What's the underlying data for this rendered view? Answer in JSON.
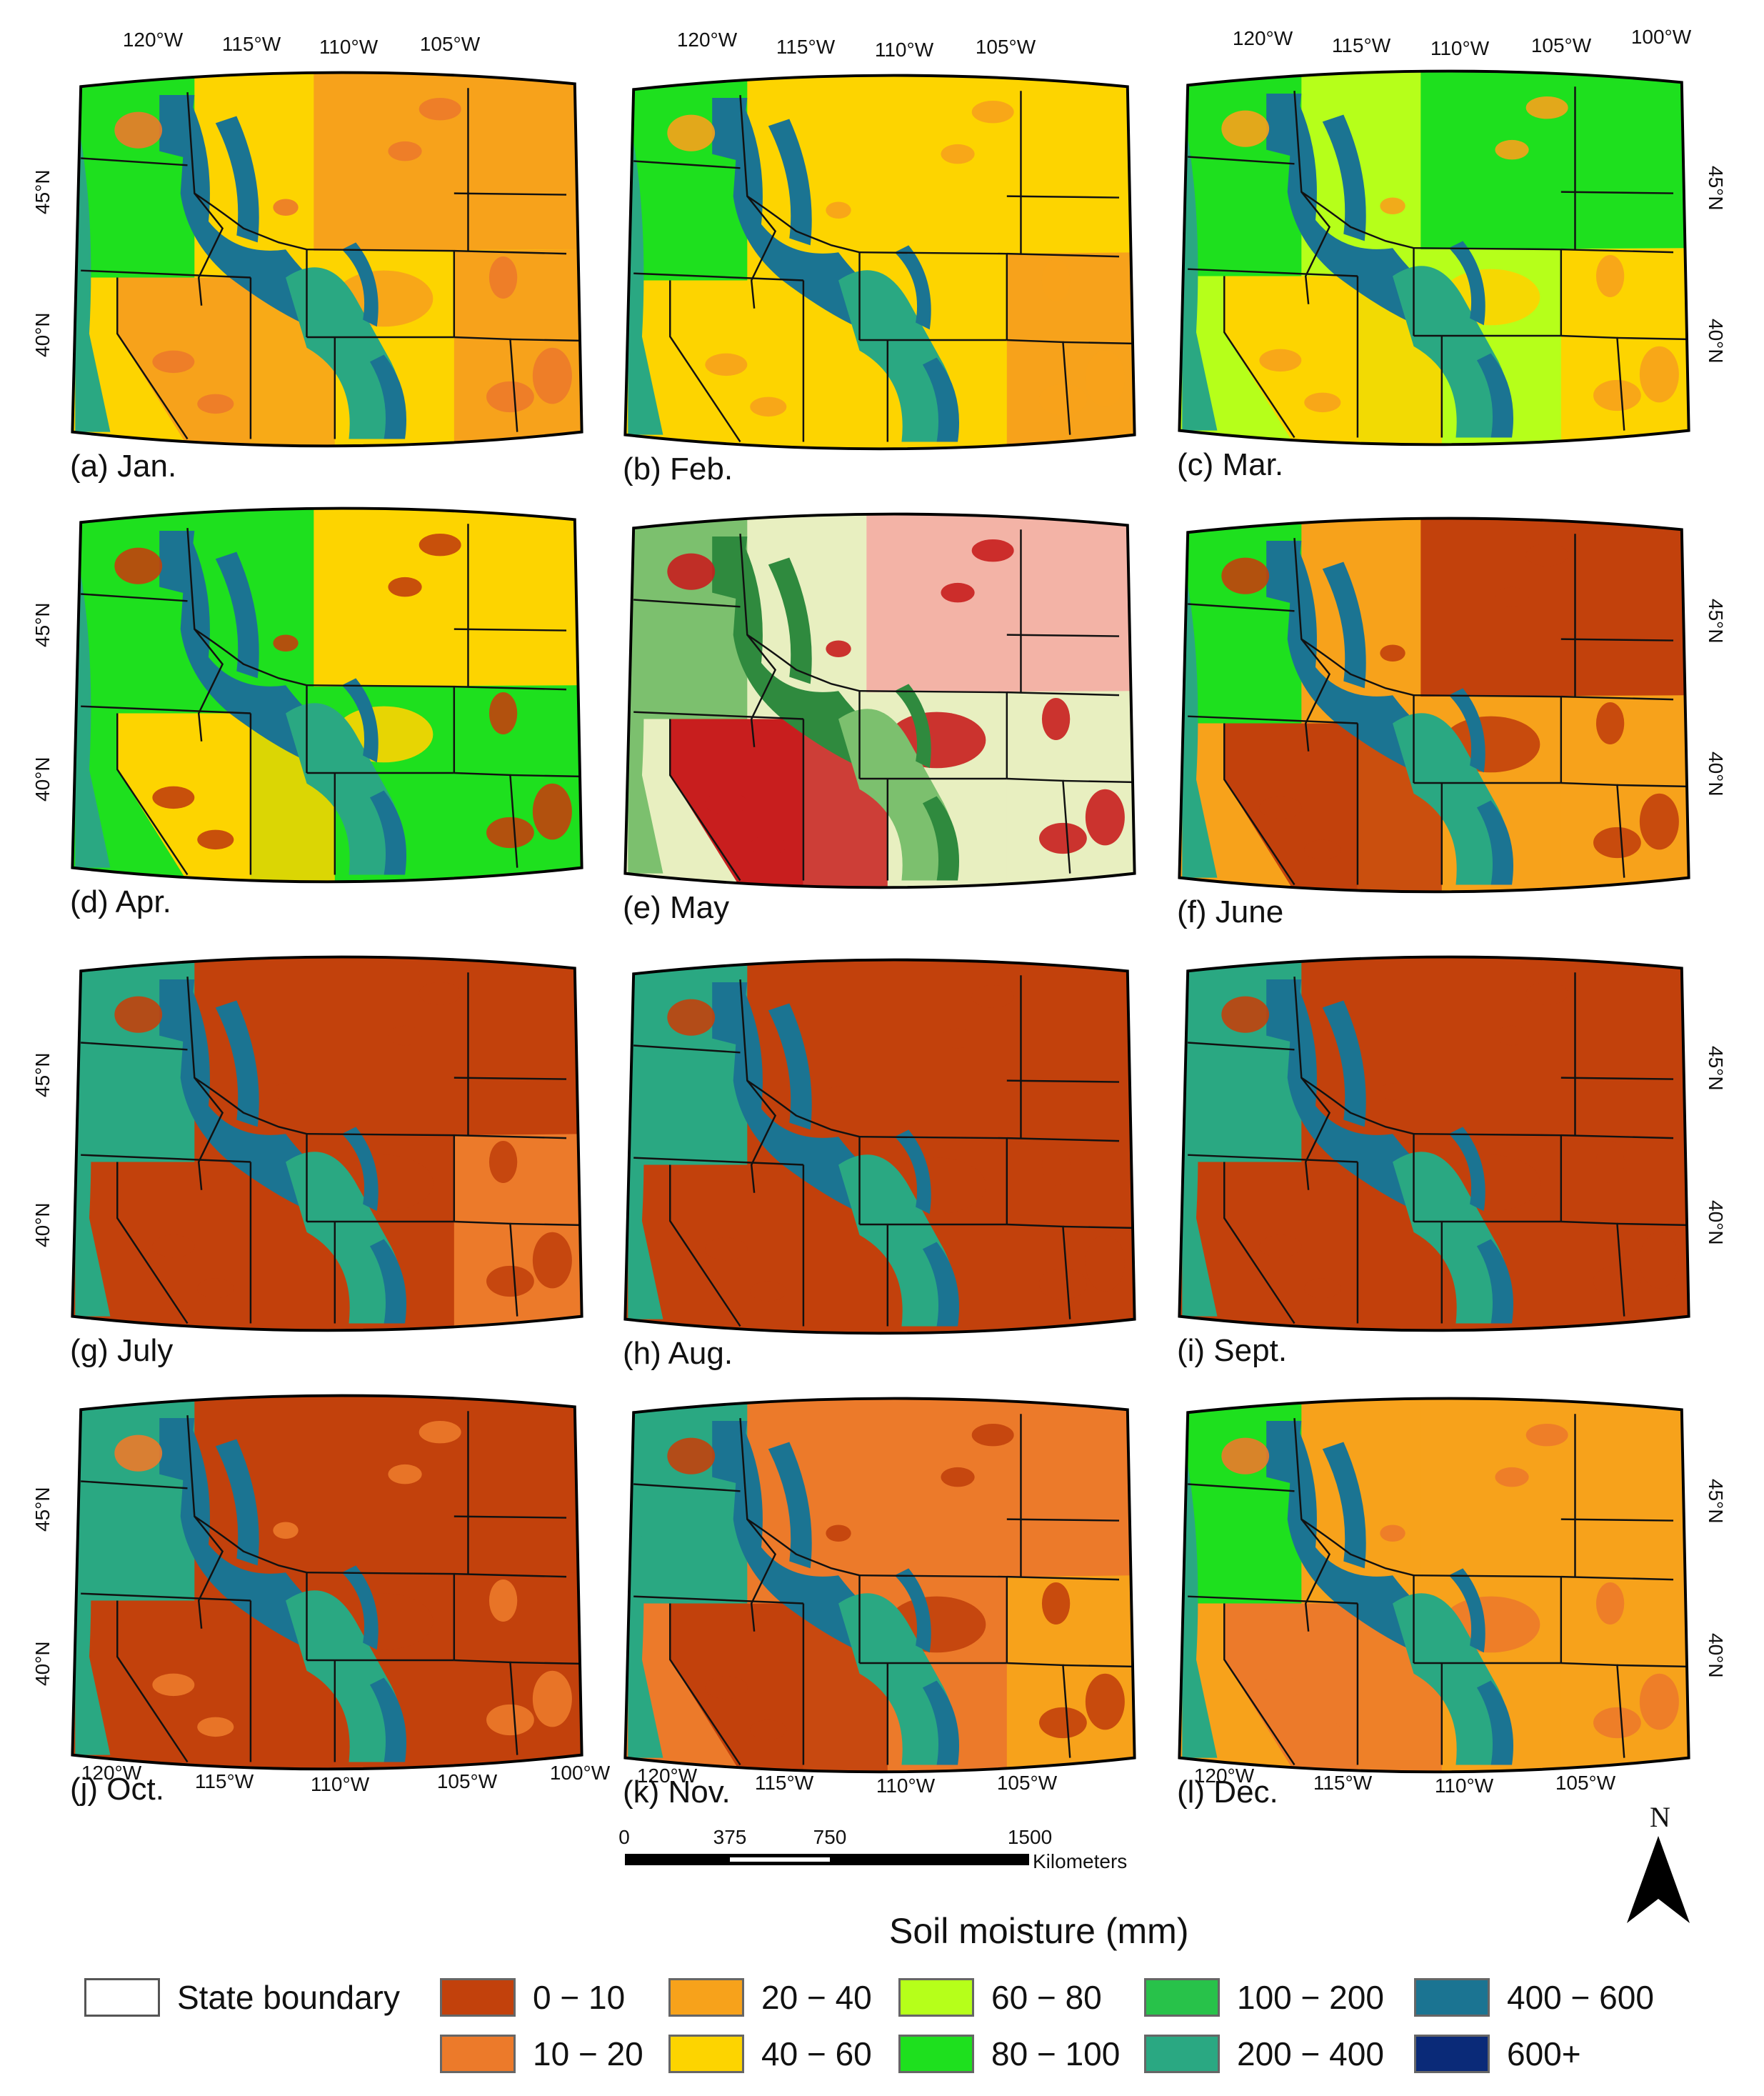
{
  "panels": [
    {
      "label": "(a) Jan.",
      "scheme": "jan"
    },
    {
      "label": "(b) Feb.",
      "scheme": "feb"
    },
    {
      "label": "(c) Mar.",
      "scheme": "mar"
    },
    {
      "label": "(d) Apr.",
      "scheme": "apr"
    },
    {
      "label": "(e) May",
      "scheme": "may"
    },
    {
      "label": "(f) June",
      "scheme": "jun"
    },
    {
      "label": "(g) July",
      "scheme": "jul"
    },
    {
      "label": "(h) Aug.",
      "scheme": "aug"
    },
    {
      "label": "(i) Sept.",
      "scheme": "sep"
    },
    {
      "label": "(j) Oct.",
      "scheme": "oct"
    },
    {
      "label": "(k) Nov.",
      "scheme": "nov"
    },
    {
      "label": "(l) Dec.",
      "scheme": "dec"
    }
  ],
  "axes": {
    "lon_top": [
      "120°W",
      "115°W",
      "110°W",
      "105°W"
    ],
    "lon_top_c": [
      "120°W",
      "115°W",
      "110°W",
      "105°W",
      "100°W"
    ],
    "lon_bottom_j": [
      "120°W",
      "115°W",
      "110°W",
      "105°W",
      "100°W"
    ],
    "lon_bottom_k": [
      "120°W",
      "115°W",
      "110°W",
      "105°W"
    ],
    "lon_bottom_l": [
      "120°W",
      "115°W",
      "110°W",
      "105°W"
    ],
    "lat": [
      "45°N",
      "40°N"
    ]
  },
  "scale_bar": {
    "ticks": [
      "0",
      "375",
      "750",
      "1500"
    ],
    "unit": "Kilometers"
  },
  "north_label": "N",
  "legend": {
    "title": "Soil moisture (mm)",
    "state_boundary": "State boundary",
    "classes": [
      {
        "label": "0 − 10",
        "color": "#c2410c"
      },
      {
        "label": "10 − 20",
        "color": "#ec7a2a"
      },
      {
        "label": "20 − 40",
        "color": "#f7a21b"
      },
      {
        "label": "40 − 60",
        "color": "#fdd400"
      },
      {
        "label": "60 − 80",
        "color": "#b6ff1a"
      },
      {
        "label": "80 − 100",
        "color": "#1ee01e"
      },
      {
        "label": "100 − 200",
        "color": "#28c24a"
      },
      {
        "label": "200 − 400",
        "color": "#2aa882"
      },
      {
        "label": "400 − 600",
        "color": "#1b7492"
      },
      {
        "label": "600+",
        "color": "#0a2a78"
      }
    ]
  }
}
